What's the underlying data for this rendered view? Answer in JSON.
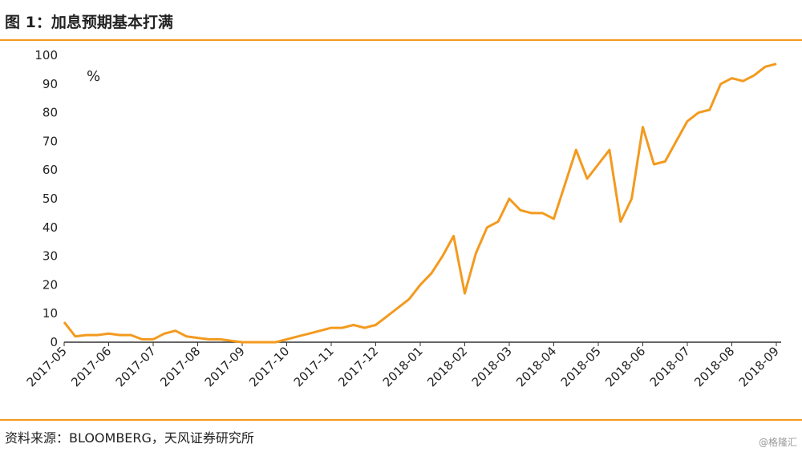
{
  "chart_data": {
    "type": "line",
    "title": "图 1：加息预期基本打满",
    "unit_label": "%",
    "source": "资料来源：BLOOMBERG，天风证券研究所",
    "watermark": "@格隆汇",
    "xticks": [
      "2017-05",
      "2017-06",
      "2017-07",
      "2017-08",
      "2017-09",
      "2017-10",
      "2017-11",
      "2017-12",
      "2018-01",
      "2018-02",
      "2018-03",
      "2018-04",
      "2018-05",
      "2018-06",
      "2018-07",
      "2018-08",
      "2018-09"
    ],
    "x": [
      "2017-05",
      "2017-05",
      "2017-05",
      "2017-05",
      "2017-06",
      "2017-06",
      "2017-06",
      "2017-06",
      "2017-07",
      "2017-07",
      "2017-07",
      "2017-07",
      "2017-08",
      "2017-08",
      "2017-08",
      "2017-08",
      "2017-09",
      "2017-09",
      "2017-09",
      "2017-09",
      "2017-10",
      "2017-10",
      "2017-10",
      "2017-10",
      "2017-11",
      "2017-11",
      "2017-11",
      "2017-11",
      "2017-12",
      "2017-12",
      "2017-12",
      "2017-12",
      "2018-01",
      "2018-01",
      "2018-01",
      "2018-01",
      "2018-02",
      "2018-02",
      "2018-02",
      "2018-02",
      "2018-03",
      "2018-03",
      "2018-03",
      "2018-03",
      "2018-04",
      "2018-04",
      "2018-04",
      "2018-04",
      "2018-05",
      "2018-05",
      "2018-05",
      "2018-05",
      "2018-06",
      "2018-06",
      "2018-06",
      "2018-06",
      "2018-07",
      "2018-07",
      "2018-07",
      "2018-07",
      "2018-08",
      "2018-08",
      "2018-08",
      "2018-08",
      "2018-09"
    ],
    "series": [
      {
        "name": "加息预期",
        "color": "#f39a1e",
        "values": [
          7,
          2,
          2.5,
          2.5,
          3,
          2.5,
          2.5,
          1,
          1,
          3,
          4,
          2,
          1.5,
          1,
          1,
          0.5,
          0,
          0,
          0,
          0,
          1,
          2,
          3,
          4,
          5,
          5,
          6,
          5,
          6,
          9,
          12,
          15,
          20,
          24,
          30,
          37,
          17,
          31,
          40,
          42,
          50,
          46,
          45,
          45,
          43,
          55,
          67,
          57,
          62,
          67,
          42,
          50,
          75,
          62,
          63,
          70,
          77,
          80,
          81,
          90,
          92,
          91,
          93,
          96,
          97
        ]
      }
    ],
    "ylim": [
      0,
      100
    ],
    "yticks": [
      0,
      10,
      20,
      30,
      40,
      50,
      60,
      70,
      80,
      90,
      100
    ],
    "grid": false
  }
}
